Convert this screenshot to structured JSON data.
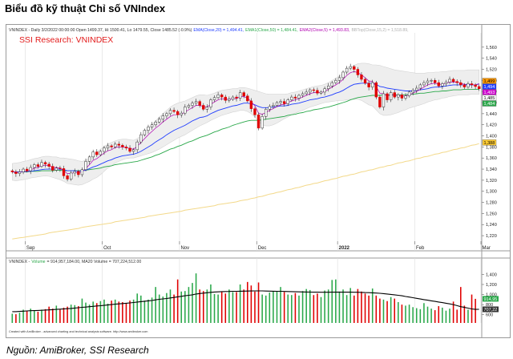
{
  "page": {
    "title": "Biểu đồ kỹ thuật Chỉ số VNIndex",
    "source": "Nguồn: AmiBroker, SSI Research"
  },
  "chart_data": [
    {
      "type": "candlestick",
      "watermark": "SSI Research: VNINDEX",
      "header_parts": [
        {
          "text": "VNINDEX - Daily 3/2/2022 00:00:00 Open 1499.37, Hi 1500.41, Lo 1479.55, Close 1485.52 (-0.9%)",
          "color": "#333333"
        },
        {
          "text": "EMA(Close,20) = 1,494.41,",
          "color": "#1e3cff"
        },
        {
          "text": "EMA1(Close,50) = 1,484.41,",
          "color": "#2aa84a"
        },
        {
          "text": "EMA2(Close,5) = 1,493.83,",
          "color": "#b000b0"
        },
        {
          "text": "BBTop(Close,15,2) = 1,518.89,",
          "color": "#b0b0b0"
        }
      ],
      "x_labels": [
        {
          "label": "Sep",
          "t": 4
        },
        {
          "label": "Oct",
          "t": 25
        },
        {
          "label": "Nov",
          "t": 46
        },
        {
          "label": "Dec",
          "t": 67
        },
        {
          "label": "2022",
          "t": 89
        },
        {
          "label": "Feb",
          "t": 110
        },
        {
          "label": "Mar",
          "t": 128
        }
      ],
      "ylim": [
        1210,
        1580
      ],
      "y_ticks": [
        1220,
        1240,
        1260,
        1280,
        1300,
        1320,
        1340,
        1360,
        1380,
        1400,
        1420,
        1440,
        1460,
        1480,
        1500,
        1520,
        1540,
        1560
      ],
      "tick_prefix": "1,",
      "price_tags": [
        {
          "value": 1499,
          "label": "1,499",
          "color": "#ff9900"
        },
        {
          "value": 1494,
          "label": "1,494",
          "color": "#1e3cff"
        },
        {
          "value": 1493,
          "label": "1,493",
          "color": "#cc00cc"
        },
        {
          "value": 1485,
          "label": "1,485",
          "color": "#ffffff"
        },
        {
          "value": 1484,
          "label": "1,484",
          "color": "#2aa84a"
        },
        {
          "value": 1388,
          "label": "1,388",
          "color": "#ffcc33"
        }
      ],
      "series_colors": {
        "ema20": "#1e3cff",
        "ema50": "#2aa84a",
        "ema5": "#b000b0",
        "ma200": "#f3d98a",
        "bb": "#d4d4d4",
        "up": "#ffffff",
        "down": "#e00000"
      },
      "close": [
        1335,
        1332,
        1335,
        1340,
        1337,
        1343,
        1348,
        1345,
        1352,
        1349,
        1345,
        1338,
        1342,
        1341,
        1328,
        1322,
        1333,
        1336,
        1330,
        1339,
        1354,
        1362,
        1371,
        1366,
        1372,
        1378,
        1382,
        1380,
        1385,
        1383,
        1380,
        1378,
        1372,
        1375,
        1389,
        1402,
        1410,
        1416,
        1420,
        1425,
        1430,
        1436,
        1440,
        1446,
        1444,
        1438,
        1441,
        1452,
        1455,
        1459,
        1462,
        1455,
        1448,
        1452,
        1465,
        1469,
        1474,
        1470,
        1464,
        1466,
        1470,
        1468,
        1478,
        1472,
        1463,
        1449,
        1438,
        1414,
        1435,
        1448,
        1453,
        1455,
        1460,
        1462,
        1458,
        1465,
        1470,
        1468,
        1473,
        1476,
        1479,
        1483,
        1482,
        1477,
        1479,
        1485,
        1490,
        1496,
        1500,
        1505,
        1515,
        1522,
        1525,
        1520,
        1510,
        1502,
        1495,
        1488,
        1496,
        1470,
        1452,
        1476,
        1465,
        1478,
        1470,
        1474,
        1468,
        1472,
        1479,
        1482,
        1486,
        1492,
        1496,
        1499,
        1500,
        1496,
        1490,
        1494,
        1497,
        1502,
        1498,
        1496,
        1492,
        1488,
        1494,
        1492,
        1489,
        1485
      ],
      "ema20": [
        1335,
        1335,
        1335,
        1335,
        1336,
        1336,
        1337,
        1338,
        1339,
        1340,
        1340,
        1340,
        1340,
        1340,
        1339,
        1337,
        1337,
        1337,
        1336,
        1337,
        1338,
        1341,
        1344,
        1346,
        1349,
        1352,
        1355,
        1357,
        1360,
        1362,
        1364,
        1365,
        1366,
        1367,
        1369,
        1372,
        1376,
        1380,
        1384,
        1389,
        1393,
        1397,
        1402,
        1406,
        1410,
        1413,
        1416,
        1419,
        1423,
        1427,
        1430,
        1433,
        1434,
        1436,
        1440,
        1443,
        1446,
        1448,
        1450,
        1452,
        1454,
        1455,
        1457,
        1459,
        1459,
        1458,
        1456,
        1453,
        1451,
        1451,
        1451,
        1452,
        1453,
        1454,
        1454,
        1455,
        1457,
        1458,
        1459,
        1461,
        1463,
        1465,
        1466,
        1467,
        1469,
        1470,
        1472,
        1474,
        1477,
        1479,
        1482,
        1486,
        1490,
        1493,
        1494,
        1495,
        1495,
        1495,
        1495,
        1493,
        1489,
        1488,
        1486,
        1485,
        1484,
        1483,
        1482,
        1481,
        1481,
        1481,
        1482,
        1483,
        1484,
        1485,
        1487,
        1488,
        1488,
        1489,
        1490,
        1491,
        1492,
        1492,
        1492,
        1492,
        1492,
        1492,
        1492,
        1494
      ],
      "ema50": [
        1335,
        1335,
        1335,
        1335,
        1335,
        1336,
        1336,
        1336,
        1337,
        1337,
        1337,
        1337,
        1338,
        1338,
        1337,
        1337,
        1337,
        1337,
        1337,
        1337,
        1338,
        1339,
        1340,
        1341,
        1342,
        1344,
        1345,
        1346,
        1348,
        1349,
        1350,
        1351,
        1352,
        1353,
        1354,
        1356,
        1358,
        1360,
        1362,
        1365,
        1367,
        1370,
        1373,
        1376,
        1378,
        1381,
        1383,
        1386,
        1389,
        1391,
        1394,
        1397,
        1399,
        1401,
        1404,
        1407,
        1409,
        1412,
        1414,
        1416,
        1419,
        1421,
        1423,
        1425,
        1427,
        1428,
        1428,
        1428,
        1429,
        1430,
        1431,
        1432,
        1433,
        1434,
        1435,
        1437,
        1438,
        1439,
        1441,
        1442,
        1444,
        1445,
        1447,
        1448,
        1449,
        1451,
        1452,
        1454,
        1456,
        1458,
        1460,
        1462,
        1465,
        1467,
        1469,
        1470,
        1471,
        1472,
        1473,
        1473,
        1473,
        1474,
        1474,
        1474,
        1474,
        1474,
        1474,
        1474,
        1475,
        1475,
        1476,
        1477,
        1477,
        1478,
        1479,
        1480,
        1480,
        1481,
        1481,
        1482,
        1483,
        1483,
        1483,
        1484,
        1484,
        1484,
        1484,
        1484
      ],
      "ema5": [
        1335,
        1334,
        1334,
        1336,
        1336,
        1338,
        1342,
        1343,
        1346,
        1347,
        1346,
        1343,
        1343,
        1342,
        1337,
        1332,
        1332,
        1334,
        1333,
        1335,
        1341,
        1348,
        1356,
        1359,
        1364,
        1369,
        1373,
        1375,
        1379,
        1380,
        1380,
        1379,
        1377,
        1376,
        1381,
        1388,
        1395,
        1402,
        1408,
        1414,
        1419,
        1425,
        1430,
        1435,
        1438,
        1438,
        1439,
        1443,
        1447,
        1451,
        1455,
        1455,
        1453,
        1452,
        1457,
        1461,
        1465,
        1467,
        1466,
        1466,
        1467,
        1467,
        1471,
        1471,
        1468,
        1462,
        1454,
        1441,
        1439,
        1442,
        1446,
        1449,
        1453,
        1456,
        1457,
        1460,
        1463,
        1465,
        1467,
        1470,
        1473,
        1476,
        1478,
        1478,
        1478,
        1480,
        1484,
        1488,
        1492,
        1496,
        1502,
        1509,
        1514,
        1516,
        1514,
        1510,
        1505,
        1499,
        1498,
        1489,
        1477,
        1476,
        1472,
        1474,
        1473,
        1473,
        1471,
        1472,
        1474,
        1477,
        1480,
        1484,
        1488,
        1492,
        1494,
        1495,
        1493,
        1493,
        1495,
        1497,
        1497,
        1497,
        1495,
        1493,
        1493,
        1493,
        1491,
        1494
      ],
      "ma200": [
        1214,
        1215,
        1216,
        1217,
        1218,
        1219,
        1220,
        1221,
        1222,
        1223,
        1225,
        1226,
        1227,
        1228,
        1229,
        1230,
        1231,
        1232,
        1233,
        1235,
        1236,
        1237,
        1238,
        1239,
        1240,
        1241,
        1242,
        1243,
        1245,
        1246,
        1247,
        1248,
        1249,
        1250,
        1251,
        1252,
        1253,
        1255,
        1256,
        1257,
        1258,
        1259,
        1260,
        1261,
        1262,
        1263,
        1264,
        1266,
        1267,
        1268,
        1269,
        1270,
        1271,
        1272,
        1273,
        1274,
        1276,
        1277,
        1278,
        1279,
        1280,
        1281,
        1283,
        1284,
        1285,
        1287,
        1288,
        1290,
        1291,
        1293,
        1295,
        1296,
        1298,
        1299,
        1301,
        1303,
        1304,
        1306,
        1307,
        1309,
        1311,
        1312,
        1314,
        1315,
        1317,
        1319,
        1320,
        1322,
        1323,
        1325,
        1327,
        1328,
        1330,
        1331,
        1333,
        1335,
        1336,
        1338,
        1339,
        1341,
        1343,
        1344,
        1346,
        1347,
        1349,
        1351,
        1352,
        1354,
        1355,
        1357,
        1359,
        1360,
        1362,
        1363,
        1365,
        1367,
        1368,
        1370,
        1371,
        1373,
        1375,
        1376,
        1378,
        1379,
        1381,
        1383,
        1384,
        1386
      ],
      "bb_top": [
        1350,
        1351,
        1352,
        1354,
        1355,
        1357,
        1359,
        1360,
        1362,
        1363,
        1363,
        1362,
        1362,
        1360,
        1360,
        1359,
        1358,
        1357,
        1355,
        1354,
        1356,
        1360,
        1366,
        1371,
        1376,
        1381,
        1385,
        1388,
        1391,
        1393,
        1394,
        1394,
        1393,
        1392,
        1395,
        1400,
        1406,
        1413,
        1420,
        1427,
        1434,
        1440,
        1446,
        1452,
        1456,
        1459,
        1461,
        1463,
        1466,
        1469,
        1472,
        1474,
        1474,
        1473,
        1475,
        1477,
        1480,
        1482,
        1483,
        1484,
        1485,
        1485,
        1487,
        1487,
        1486,
        1484,
        1482,
        1480,
        1478,
        1476,
        1475,
        1475,
        1475,
        1475,
        1475,
        1476,
        1478,
        1479,
        1481,
        1483,
        1485,
        1487,
        1489,
        1490,
        1491,
        1493,
        1496,
        1500,
        1504,
        1508,
        1513,
        1518,
        1523,
        1527,
        1530,
        1531,
        1531,
        1530,
        1528,
        1528,
        1527,
        1525,
        1523,
        1521,
        1519,
        1518,
        1517,
        1516,
        1515,
        1514,
        1513,
        1513,
        1513,
        1514,
        1514,
        1515,
        1515,
        1516,
        1516,
        1517,
        1518,
        1518,
        1518,
        1518,
        1519,
        1519,
        1519,
        1519
      ],
      "bb_bot": [
        1320,
        1319,
        1320,
        1321,
        1322,
        1324,
        1325,
        1326,
        1327,
        1328,
        1327,
        1325,
        1323,
        1321,
        1318,
        1314,
        1313,
        1312,
        1311,
        1312,
        1315,
        1318,
        1322,
        1325,
        1330,
        1336,
        1342,
        1346,
        1351,
        1354,
        1357,
        1359,
        1360,
        1360,
        1362,
        1364,
        1366,
        1368,
        1370,
        1373,
        1376,
        1380,
        1384,
        1388,
        1392,
        1396,
        1399,
        1402,
        1406,
        1410,
        1414,
        1418,
        1421,
        1424,
        1428,
        1431,
        1434,
        1437,
        1439,
        1441,
        1443,
        1444,
        1446,
        1446,
        1444,
        1440,
        1434,
        1426,
        1420,
        1418,
        1418,
        1420,
        1423,
        1427,
        1431,
        1434,
        1438,
        1441,
        1444,
        1446,
        1449,
        1452,
        1454,
        1456,
        1458,
        1460,
        1461,
        1462,
        1463,
        1464,
        1464,
        1465,
        1466,
        1466,
        1466,
        1464,
        1460,
        1456,
        1454,
        1447,
        1440,
        1437,
        1437,
        1438,
        1440,
        1442,
        1445,
        1447,
        1450,
        1452,
        1454,
        1456,
        1458,
        1461,
        1463,
        1465,
        1466,
        1468,
        1469,
        1471,
        1472,
        1473,
        1474,
        1474,
        1474,
        1475,
        1475,
        1475
      ]
    },
    {
      "type": "bar",
      "header_parts": [
        {
          "text": "VNINDEX -",
          "color": "#333333"
        },
        {
          "text": "Volume",
          "color": "#2aa84a"
        },
        {
          "text": "= 914,957,184.00, MA20 Volume = 707,224,512.00",
          "color": "#333333"
        }
      ],
      "ylim": [
        500,
        1550
      ],
      "y_ticks": [
        {
          "value": 600,
          "label": "600"
        },
        {
          "value": 800,
          "label": "800"
        },
        {
          "value": 1000,
          "label": "1,000"
        },
        {
          "value": 1200,
          "label": "1,200"
        },
        {
          "value": 1400,
          "label": "1,400"
        }
      ],
      "value_tags": [
        {
          "value": 915,
          "label": "914,95",
          "color": "#2aa84a"
        },
        {
          "value": 707,
          "label": "707,22",
          "color": "#333333"
        }
      ],
      "series_colors": {
        "up": "#2aa84a",
        "down": "#e00000",
        "ma20": "#000000"
      },
      "values": [
        620,
        610,
        640,
        700,
        680,
        720,
        690,
        660,
        700,
        710,
        760,
        720,
        780,
        700,
        740,
        760,
        800,
        790,
        770,
        920,
        840,
        800,
        860,
        830,
        870,
        900,
        820,
        880,
        900,
        860,
        850,
        830,
        880,
        900,
        1020,
        980,
        880,
        900,
        940,
        1150,
        1000,
        960,
        1030,
        1100,
        1000,
        1300,
        1060,
        1070,
        1150,
        1230,
        1420,
        1100,
        1070,
        1100,
        1200,
        1010,
        1000,
        1050,
        1020,
        1100,
        1050,
        1050,
        1200,
        1100,
        1250,
        1180,
        1060,
        1240,
        1000,
        980,
        1040,
        1060,
        1070,
        1150,
        1050,
        1000,
        990,
        1030,
        980,
        1070,
        1110,
        1090,
        990,
        1020,
        950,
        1080,
        1100,
        1290,
        1300,
        1060,
        1100,
        990,
        1130,
        980,
        1110,
        1060,
        1020,
        980,
        1120,
        980,
        920,
        900,
        870,
        950,
        920,
        850,
        800,
        780,
        800,
        750,
        730,
        710,
        830,
        760,
        720,
        690,
        770,
        740,
        680,
        720,
        860,
        700,
        1150,
        780,
        700,
        1000,
        915
      ],
      "ma20": [
        660,
        660,
        665,
        670,
        675,
        680,
        682,
        685,
        688,
        692,
        696,
        700,
        705,
        710,
        715,
        720,
        725,
        732,
        738,
        746,
        752,
        760,
        766,
        773,
        779,
        785,
        792,
        800,
        808,
        815,
        822,
        828,
        834,
        842,
        852,
        860,
        868,
        875,
        882,
        895,
        905,
        913,
        922,
        932,
        942,
        955,
        965,
        975,
        985,
        995,
        1010,
        1020,
        1028,
        1036,
        1044,
        1050,
        1054,
        1058,
        1060,
        1062,
        1064,
        1065,
        1067,
        1068,
        1070,
        1071,
        1072,
        1073,
        1072,
        1070,
        1068,
        1066,
        1065,
        1064,
        1062,
        1060,
        1058,
        1056,
        1054,
        1052,
        1050,
        1049,
        1048,
        1047,
        1046,
        1046,
        1046,
        1047,
        1048,
        1048,
        1048,
        1048,
        1047,
        1046,
        1045,
        1043,
        1040,
        1037,
        1034,
        1030,
        1025,
        1018,
        1010,
        1002,
        995,
        985,
        975,
        962,
        950,
        938,
        925,
        912,
        900,
        888,
        876,
        864,
        852,
        840,
        828,
        815,
        800,
        780,
        760,
        745,
        730,
        715,
        705,
        707
      ]
    }
  ],
  "footer_credit": "Created with AmiBroker - advanced charting and technical analysis software. http://www.amibroker.com"
}
